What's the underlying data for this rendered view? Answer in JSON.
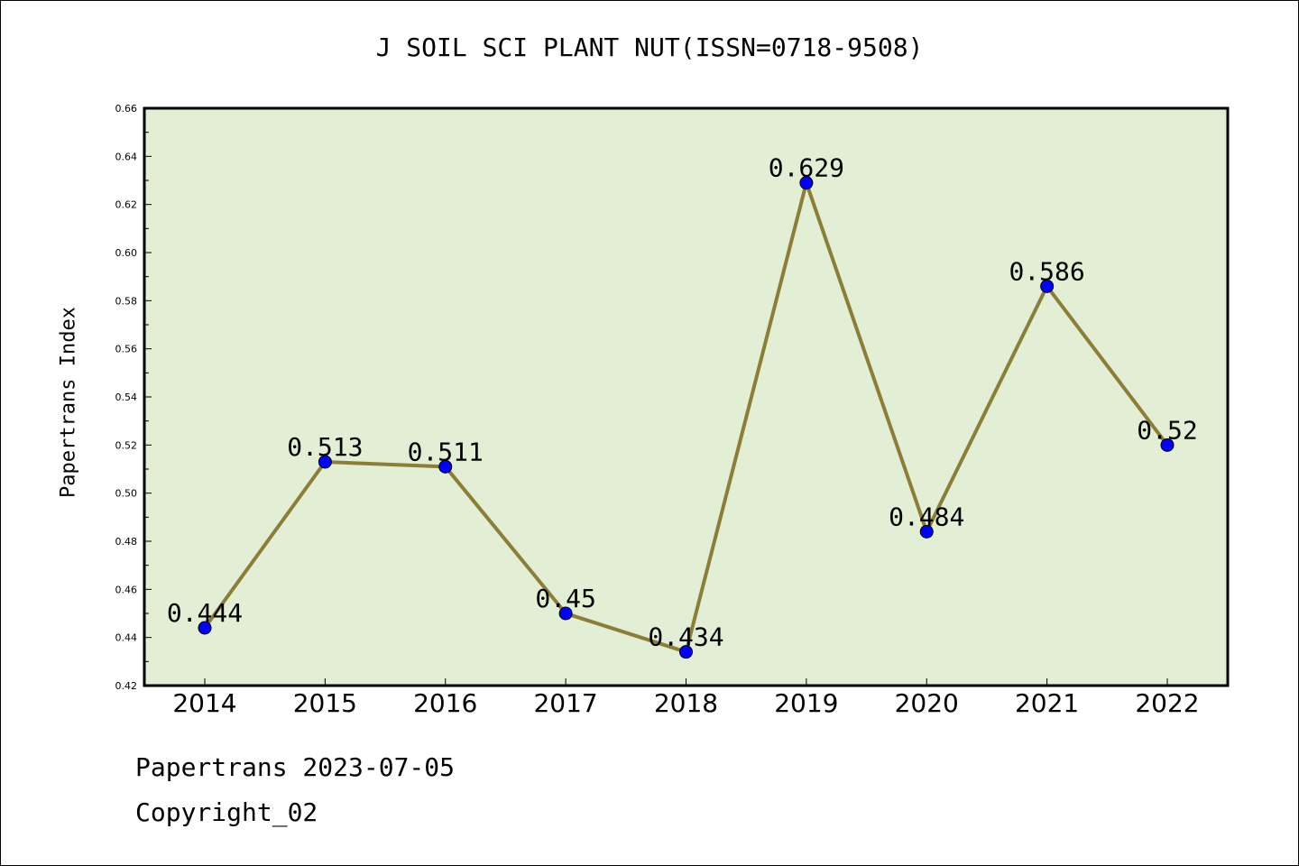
{
  "page": {
    "footer_line1": "Papertrans 2023-07-05",
    "footer_line2": "Copyright_02"
  },
  "chart_data": {
    "type": "line",
    "title": "J SOIL SCI PLANT NUT(ISSN=0718-9508)",
    "xlabel": "",
    "ylabel": "Papertrans Index",
    "categories": [
      "2014",
      "2015",
      "2016",
      "2017",
      "2018",
      "2019",
      "2020",
      "2021",
      "2022"
    ],
    "series": [
      {
        "values": [
          0.444,
          0.513,
          0.511,
          0.45,
          0.434,
          0.629,
          0.484,
          0.586,
          0.52
        ],
        "labels": [
          "0.444",
          "0.513",
          "0.511",
          "0.45",
          "0.434",
          "0.629",
          "0.484",
          "0.586",
          "0.52"
        ]
      }
    ],
    "ylim": [
      0.42,
      0.66
    ],
    "yticks": [
      "0.42",
      "0.44",
      "0.46",
      "0.48",
      "0.50",
      "0.52",
      "0.54",
      "0.56",
      "0.58",
      "0.60",
      "0.62",
      "0.64",
      "0.66"
    ],
    "grid": false,
    "colors": {
      "plot_background": "#e2efd4",
      "line": "#8c7d37",
      "marker": "#0000ff"
    }
  }
}
